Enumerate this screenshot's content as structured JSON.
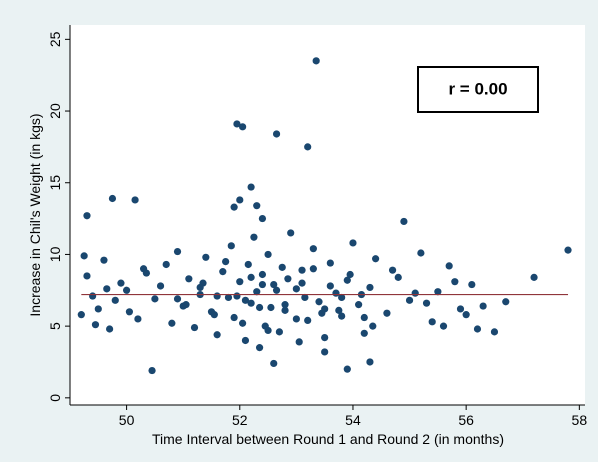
{
  "chart_data": {
    "type": "scatter",
    "xlabel": "Time Interval between Round 1 and Round 2 (in months)",
    "ylabel": "Increase in Chil's Weight (in kgs)",
    "annotation": "r = 0.00",
    "xlim": [
      49.0,
      58.1
    ],
    "ylim": [
      -0.5,
      26
    ],
    "xticks": [
      50,
      52,
      54,
      56,
      58
    ],
    "yticks": [
      0,
      5,
      10,
      15,
      20,
      25
    ],
    "color": "#1a476f",
    "x": [
      53.35,
      51.95,
      52.05,
      52.65,
      53.2,
      52.2,
      52.0,
      49.75,
      50.15,
      49.3,
      51.9,
      52.3,
      52.4,
      54.9,
      57.8,
      57.2,
      50.45,
      53.9,
      54.3,
      52.6,
      56.2,
      55.6,
      49.7,
      53.5,
      49.2,
      49.3,
      49.4,
      49.5,
      49.6,
      49.8,
      49.9,
      50.0,
      50.2,
      50.3,
      50.5,
      50.6,
      50.8,
      50.9,
      51.0,
      51.1,
      51.2,
      51.3,
      51.4,
      51.5,
      51.6,
      51.7,
      51.8,
      51.85,
      51.9,
      52.0,
      52.1,
      52.15,
      52.2,
      52.25,
      52.3,
      52.35,
      52.4,
      52.45,
      52.5,
      52.55,
      52.6,
      52.7,
      52.75,
      52.8,
      52.9,
      53.0,
      53.05,
      53.1,
      53.2,
      53.3,
      53.4,
      53.5,
      53.6,
      53.7,
      53.8,
      53.9,
      54.0,
      54.1,
      54.2,
      54.3,
      54.4,
      54.6,
      54.8,
      55.0,
      55.2,
      55.4,
      55.5,
      55.7,
      55.9,
      56.0,
      56.1,
      56.3,
      56.5,
      56.7,
      49.25,
      49.45,
      49.65,
      50.05,
      50.35,
      50.7,
      51.05,
      51.35,
      51.55,
      51.75,
      51.95,
      52.05,
      52.2,
      52.35,
      52.5,
      52.65,
      52.85,
      53.0,
      53.15,
      53.3,
      53.45,
      53.6,
      53.75,
      53.95,
      54.15,
      54.35,
      54.7,
      55.1,
      55.3,
      55.8,
      51.6,
      52.1,
      52.4,
      52.8,
      53.1,
      53.5,
      53.8,
      54.2,
      51.3,
      50.9
    ],
    "y": [
      23.5,
      19.1,
      18.9,
      18.4,
      17.5,
      14.7,
      13.8,
      13.9,
      13.8,
      12.7,
      13.3,
      13.4,
      12.5,
      12.3,
      10.3,
      8.4,
      1.9,
      2.0,
      2.5,
      2.4,
      4.8,
      5.0,
      4.8,
      3.2,
      5.8,
      8.5,
      7.1,
      6.2,
      9.6,
      6.8,
      8.0,
      7.5,
      5.5,
      9.0,
      6.9,
      7.8,
      5.2,
      10.2,
      6.4,
      8.3,
      4.9,
      7.2,
      9.8,
      6.0,
      4.4,
      8.8,
      7.0,
      10.6,
      5.6,
      8.1,
      4.0,
      9.3,
      6.6,
      11.2,
      7.4,
      3.5,
      8.6,
      5.0,
      10.0,
      6.3,
      7.9,
      4.6,
      9.1,
      6.1,
      11.5,
      7.6,
      3.9,
      8.9,
      5.4,
      10.4,
      6.7,
      4.2,
      9.4,
      7.3,
      5.7,
      8.2,
      10.8,
      6.5,
      4.5,
      7.7,
      9.7,
      5.9,
      8.4,
      6.8,
      10.1,
      5.3,
      7.4,
      9.2,
      6.2,
      5.8,
      7.9,
      6.4,
      4.6,
      6.7,
      9.9,
      5.1,
      7.6,
      6.0,
      8.7,
      9.3,
      6.5,
      8.0,
      5.8,
      9.5,
      7.1,
      5.2,
      8.4,
      6.3,
      4.7,
      7.5,
      8.3,
      5.5,
      7.0,
      9.0,
      5.9,
      7.8,
      6.1,
      8.6,
      7.2,
      5.0,
      8.9,
      7.3,
      6.6,
      8.1,
      7.1,
      6.8,
      7.9,
      6.5,
      8.0,
      6.2,
      7.0,
      5.6,
      7.7,
      6.9
    ],
    "fit": {
      "color": "#90353b",
      "x": [
        49.2,
        57.8
      ],
      "y": [
        7.2,
        7.2
      ]
    }
  }
}
